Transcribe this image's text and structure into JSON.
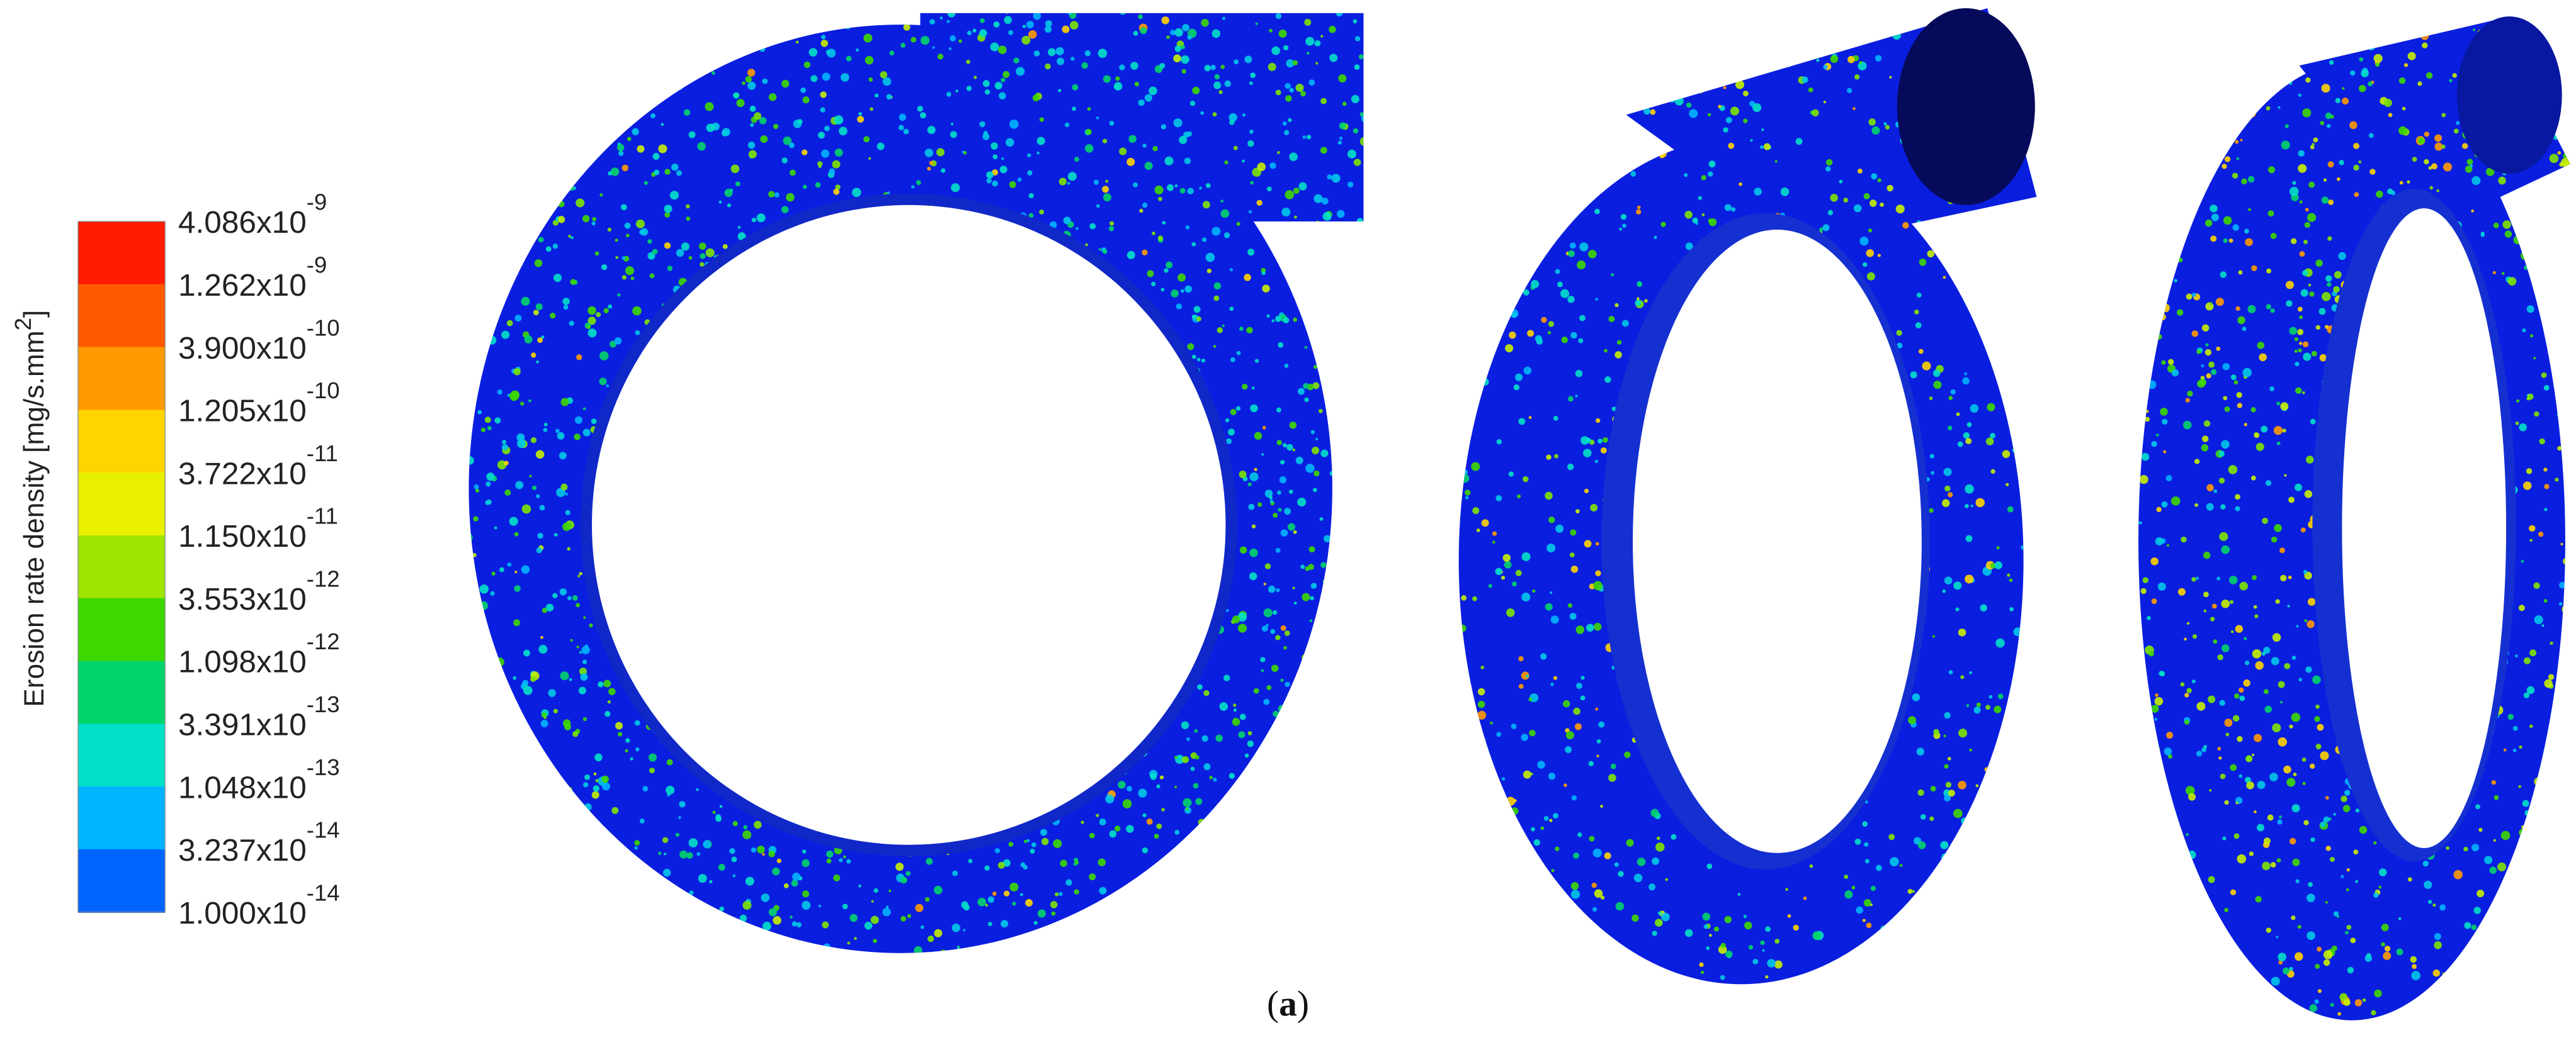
{
  "legend": {
    "title": "Erosion rate density [mg/s.mm",
    "title_sup": "2",
    "title_end": "]",
    "colors": [
      "#ff1a00",
      "#ff5a00",
      "#ff9a00",
      "#ffd400",
      "#e8f000",
      "#9ee600",
      "#3ed800",
      "#00d46a",
      "#00e0c8",
      "#00b4ff",
      "#0064ff"
    ],
    "levels": [
      {
        "base": "4.086x10",
        "exp": "-9"
      },
      {
        "base": "1.262x10",
        "exp": "-9"
      },
      {
        "base": "3.900x10",
        "exp": "-10"
      },
      {
        "base": "1.205x10",
        "exp": "-10"
      },
      {
        "base": "3.722x10",
        "exp": "-11"
      },
      {
        "base": "1.150x10",
        "exp": "-11"
      },
      {
        "base": "3.553x10",
        "exp": "-12"
      },
      {
        "base": "1.098x10",
        "exp": "-12"
      },
      {
        "base": "3.391x10",
        "exp": "-13"
      },
      {
        "base": "1.048x10",
        "exp": "-13"
      },
      {
        "base": "3.237x10",
        "exp": "-14"
      },
      {
        "base": "1.000x10",
        "exp": "-14"
      }
    ]
  },
  "caption": {
    "open": "(",
    "letter": "a",
    "close": ")"
  }
}
